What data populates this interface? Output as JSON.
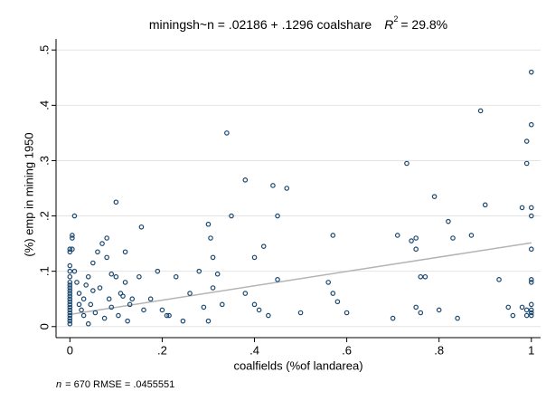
{
  "chart_data": {
    "type": "scatter",
    "title": "miningsh~n = .02186 + .1296 coalshare",
    "r2_symbol": "R",
    "r2_sup": "2",
    "r2_text": "= 29.8%",
    "xlabel": "coalfields (%of landarea)",
    "ylabel": "(%) emp in mining 1950",
    "note_n": "n",
    "note_text": "= 670    RMSE = .0455551",
    "color": "#1a476f",
    "fit_color": "#b4b4b4",
    "grid": true,
    "fit": {
      "intercept": 0.02186,
      "slope": 0.1296
    },
    "xlim": [
      -0.03,
      1.02
    ],
    "ylim": [
      -0.02,
      0.52
    ],
    "xticks": [
      0,
      {
        "value": 0.2,
        "label": ".2"
      },
      {
        "value": 0.4,
        "label": ".4"
      },
      {
        "value": 0.6,
        "label": ".6"
      },
      {
        "value": 0.8,
        "label": ".8"
      },
      1
    ],
    "yticks": [
      0,
      {
        "value": 0.1,
        "label": ".1"
      },
      {
        "value": 0.2,
        "label": ".2"
      },
      {
        "value": 0.3,
        "label": ".3"
      },
      {
        "value": 0.4,
        "label": ".4"
      },
      {
        "value": 0.5,
        "label": ".5"
      }
    ],
    "x": [
      0,
      0,
      0,
      0,
      0,
      0,
      0,
      0,
      0,
      0,
      0,
      0,
      0,
      0,
      0,
      0,
      0,
      0,
      0,
      0,
      0,
      0.005,
      0.005,
      0.01,
      0.005,
      0.01,
      0.015,
      0.02,
      0.02,
      0.025,
      0.03,
      0.03,
      0.035,
      0.04,
      0.04,
      0.045,
      0.05,
      0.05,
      0.055,
      0.06,
      0.065,
      0.07,
      0.075,
      0.08,
      0.08,
      0.085,
      0.09,
      0.09,
      0.1,
      0.1,
      0.105,
      0.11,
      0.115,
      0.12,
      0.12,
      0.125,
      0.13,
      0.135,
      0.15,
      0.155,
      0.16,
      0.175,
      0.19,
      0.2,
      0.21,
      0.215,
      0.23,
      0.245,
      0.26,
      0.28,
      0.29,
      0.3,
      0.305,
      0.3,
      0.31,
      0.31,
      0.32,
      0.33,
      0.34,
      0.35,
      0.38,
      0.38,
      0.4,
      0.4,
      0.41,
      0.42,
      0.43,
      0.44,
      0.45,
      0.45,
      0.47,
      0.5,
      0.56,
      0.57,
      0.57,
      0.58,
      0.6,
      0.7,
      0.71,
      0.73,
      0.74,
      0.75,
      0.75,
      0.76,
      0.77,
      0.75,
      0.76,
      0.79,
      0.8,
      0.82,
      0.83,
      0.84,
      0.87,
      0.89,
      0.9,
      0.93,
      0.95,
      0.96,
      0.98,
      0.99,
      0.99,
      1,
      1,
      1,
      1,
      1,
      1,
      1,
      1,
      1,
      1,
      1,
      0.98,
      0.99,
      0.99
    ],
    "y": [
      0.005,
      0.01,
      0.015,
      0.02,
      0.025,
      0.03,
      0.035,
      0.04,
      0.045,
      0.05,
      0.055,
      0.06,
      0.065,
      0.07,
      0.075,
      0.08,
      0.09,
      0.1,
      0.11,
      0.135,
      0.14,
      0.16,
      0.165,
      0.2,
      0.14,
      0.1,
      0.08,
      0.06,
      0.04,
      0.03,
      0.05,
      0.02,
      0.075,
      0.005,
      0.09,
      0.04,
      0.115,
      0.065,
      0.025,
      0.135,
      0.07,
      0.15,
      0.015,
      0.125,
      0.16,
      0.05,
      0.035,
      0.095,
      0.09,
      0.225,
      0.02,
      0.06,
      0.055,
      0.135,
      0.08,
      0.01,
      0.04,
      0.05,
      0.09,
      0.18,
      0.03,
      0.05,
      0.1,
      0.03,
      0.02,
      0.02,
      0.09,
      0.01,
      0.06,
      0.1,
      0.035,
      0.185,
      0.16,
      0.01,
      0.125,
      0.07,
      0.095,
      0.04,
      0.35,
      0.2,
      0.265,
      0.06,
      0.125,
      0.04,
      0.03,
      0.145,
      0.02,
      0.255,
      0.2,
      0.085,
      0.25,
      0.025,
      0.08,
      0.165,
      0.06,
      0.045,
      0.025,
      0.015,
      0.165,
      0.295,
      0.155,
      0.16,
      0.14,
      0.09,
      0.09,
      0.035,
      0.025,
      0.235,
      0.03,
      0.19,
      0.16,
      0.015,
      0.165,
      0.39,
      0.22,
      0.085,
      0.035,
      0.02,
      0.215,
      0.335,
      0.295,
      0.46,
      0.365,
      0.215,
      0.2,
      0.14,
      0.085,
      0.08,
      0.04,
      0.03,
      0.025,
      0.02,
      0.035,
      0.03,
      0.02
    ]
  }
}
